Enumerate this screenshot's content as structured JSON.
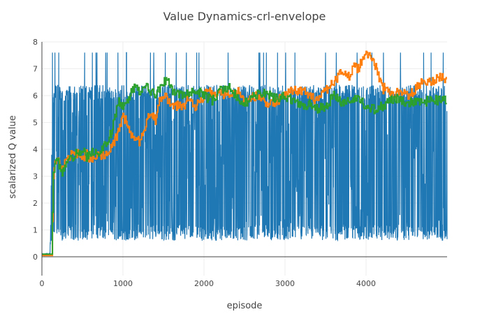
{
  "chart_data": {
    "type": "line",
    "title": "Value Dynamics-crl-envelope",
    "xlabel": "episode",
    "ylabel": "scalarized Q value",
    "xlim": [
      0,
      5000
    ],
    "ylim": [
      -0.7,
      8
    ],
    "x_ticks": [
      0,
      1000,
      2000,
      3000,
      4000
    ],
    "y_ticks": [
      0,
      1,
      2,
      3,
      4,
      5,
      6,
      7,
      8
    ],
    "grid": true,
    "legend": "none",
    "series": [
      {
        "color": "#1f77b4",
        "style": "noisy",
        "x": [
          0,
          100,
          130,
          160,
          5000
        ],
        "low": [
          0.05,
          0.05,
          0.6,
          0.6,
          0.6
        ],
        "high": [
          0.1,
          0.15,
          6.0,
          6.4,
          6.4
        ],
        "peak": 7.6
      },
      {
        "color": "#ff7f0e",
        "style": "step",
        "x": [
          0,
          120,
          140,
          160,
          200,
          250,
          300,
          350,
          400,
          500,
          550,
          600,
          650,
          700,
          800,
          850,
          900,
          950,
          1000,
          1050,
          1100,
          1150,
          1200,
          1250,
          1300,
          1350,
          1400,
          1450,
          1500,
          1550,
          1600,
          1650,
          1700,
          1750,
          1800,
          1850,
          1900,
          1950,
          2000,
          2050,
          2100,
          2200,
          2300,
          2400,
          2500,
          2600,
          2700,
          2800,
          2900,
          3000,
          3100,
          3200,
          3300,
          3400,
          3500,
          3600,
          3700,
          3750,
          3800,
          3850,
          3900,
          3950,
          4000,
          4050,
          4100,
          4150,
          4200,
          4250,
          4300,
          4400,
          4500,
          4600,
          4700,
          4800,
          4900,
          4990
        ],
        "y": [
          0.05,
          0.05,
          2.9,
          3.5,
          3.5,
          3.3,
          3.6,
          3.8,
          3.9,
          3.7,
          3.8,
          3.6,
          3.7,
          3.75,
          3.8,
          4.1,
          4.3,
          4.8,
          5.2,
          5.0,
          4.6,
          4.4,
          4.3,
          4.6,
          5.2,
          5.4,
          5.1,
          5.8,
          6.1,
          5.8,
          5.6,
          5.6,
          5.7,
          5.5,
          5.9,
          5.7,
          5.6,
          5.8,
          6.0,
          6.2,
          6.0,
          6.1,
          6.0,
          6.2,
          5.8,
          6.0,
          5.9,
          5.7,
          5.8,
          6.0,
          6.2,
          6.2,
          6.0,
          5.8,
          6.2,
          6.5,
          6.9,
          6.9,
          6.7,
          7.1,
          7.0,
          7.3,
          7.6,
          7.5,
          7.2,
          6.8,
          6.2,
          6.4,
          6.0,
          6.2,
          6.0,
          6.2,
          6.6,
          6.5,
          6.7,
          6.6
        ]
      },
      {
        "color": "#2ca02c",
        "style": "step",
        "x": [
          0,
          120,
          140,
          160,
          200,
          250,
          300,
          350,
          400,
          450,
          500,
          550,
          600,
          650,
          700,
          750,
          800,
          850,
          900,
          950,
          1000,
          1050,
          1100,
          1150,
          1200,
          1300,
          1400,
          1500,
          1550,
          1600,
          1700,
          1800,
          1900,
          2000,
          2100,
          2200,
          2300,
          2400,
          2500,
          2600,
          2700,
          2800,
          2900,
          3000,
          3100,
          3200,
          3300,
          3400,
          3500,
          3600,
          3700,
          3800,
          3900,
          4000,
          4100,
          4200,
          4300,
          4400,
          4500,
          4600,
          4700,
          4800,
          4900,
          4990
        ],
        "y": [
          0.1,
          0.1,
          3.0,
          3.6,
          3.5,
          3.1,
          3.4,
          3.6,
          3.8,
          3.9,
          4.0,
          3.7,
          3.9,
          3.8,
          3.9,
          4.1,
          4.3,
          4.6,
          5.2,
          5.8,
          5.5,
          5.8,
          6.1,
          6.3,
          6.1,
          6.3,
          6.0,
          6.5,
          6.6,
          6.2,
          6.0,
          6.1,
          6.2,
          6.0,
          5.8,
          6.2,
          6.3,
          6.0,
          5.7,
          6.0,
          6.1,
          6.0,
          5.9,
          6.0,
          5.8,
          5.6,
          5.7,
          5.5,
          5.6,
          6.0,
          5.7,
          5.8,
          5.9,
          5.6,
          5.5,
          5.6,
          5.8,
          5.9,
          5.7,
          5.8,
          5.7,
          5.9,
          5.8,
          5.8
        ]
      }
    ]
  }
}
